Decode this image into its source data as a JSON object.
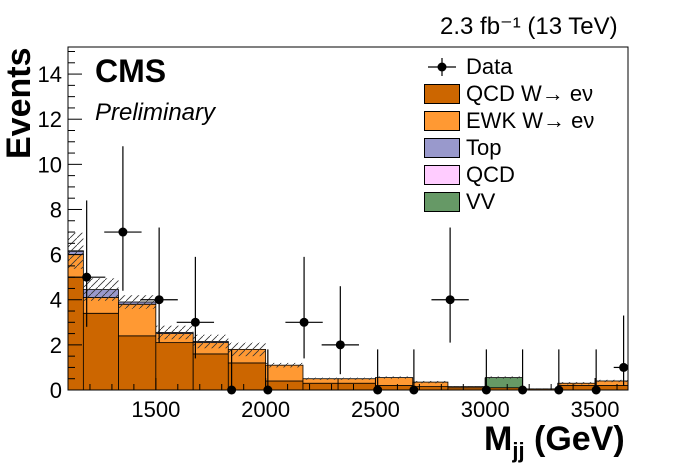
{
  "lumi_label": "2.3 fb⁻¹ (13 TeV)",
  "cms_label": "CMS",
  "prelim_label": "Preliminary",
  "chart_data": {
    "type": "bar",
    "stacked": true,
    "xlabel": "Mjj (GeV)",
    "ylabel": "Events",
    "xlim": [
      1100,
      3650
    ],
    "ylim": [
      0,
      15.2
    ],
    "xticks": [
      1500,
      2000,
      2500,
      3000,
      3500
    ],
    "yticks": [
      0,
      2,
      4,
      6,
      8,
      10,
      12,
      14
    ],
    "bin_edges": [
      1100,
      1170,
      1330,
      1500,
      1670,
      1830,
      2000,
      2170,
      2330,
      2500,
      2670,
      2830,
      3000,
      3170,
      3330,
      3500,
      3650
    ],
    "legend_placement": "top-right",
    "series": [
      {
        "name": "QCD W→ eν",
        "color": "#cc6600",
        "values": [
          5.0,
          3.4,
          2.4,
          2.1,
          1.6,
          1.2,
          0.4,
          0.3,
          0.3,
          0.2,
          0.15,
          0.1,
          0.1,
          0.05,
          0.2,
          0.2
        ]
      },
      {
        "name": "EWK W→ eν",
        "color": "#ff9933",
        "values": [
          1.0,
          0.7,
          1.4,
          0.4,
          0.5,
          0.6,
          0.7,
          0.2,
          0.2,
          0.35,
          0.2,
          0.05,
          0.0,
          0.0,
          0.1,
          0.2
        ]
      },
      {
        "name": "Top",
        "color": "#9999cc",
        "values": [
          0.15,
          0.35,
          0.1,
          0.05,
          0.05,
          0.0,
          0.0,
          0.0,
          0.0,
          0.0,
          0.0,
          0.0,
          0.0,
          0.0,
          0.0,
          0.0
        ]
      },
      {
        "name": "QCD",
        "color": "#ffccff",
        "values": [
          0.02,
          0.0,
          0.0,
          0.0,
          0.0,
          0.0,
          0.0,
          0.0,
          0.0,
          0.0,
          0.0,
          0.0,
          0.0,
          0.0,
          0.0,
          0.0
        ]
      },
      {
        "name": "VV",
        "color": "#669966",
        "values": [
          0.0,
          0.0,
          0.0,
          0.0,
          0.0,
          0.0,
          0.0,
          0.0,
          0.0,
          0.0,
          0.0,
          0.0,
          0.45,
          0.0,
          0.0,
          0.0
        ]
      }
    ],
    "mc_uncertainty": [
      0.8,
      0.5,
      0.3,
      0.3,
      0.3,
      0.3,
      0.1,
      0.05,
      0.05,
      0.05,
      0.05,
      0.02,
      0.05,
      0.02,
      0.05,
      0.05
    ],
    "data": {
      "name": "Data",
      "x": [
        1250,
        1420,
        1580,
        1750,
        1920,
        2080,
        2250,
        2420,
        2580,
        2750,
        2920,
        3080,
        3250,
        3420,
        3580,
        3650
      ],
      "points": [
        {
          "x": 1185,
          "y": 5,
          "yerr_up": 3.4,
          "yerr_down": 2.2,
          "xerr": 85
        },
        {
          "x": 1350,
          "y": 7,
          "yerr_up": 3.8,
          "yerr_down": 2.6,
          "xerr": 85
        },
        {
          "x": 1515,
          "y": 4,
          "yerr_up": 3.2,
          "yerr_down": 1.9,
          "xerr": 85
        },
        {
          "x": 1680,
          "y": 3,
          "yerr_up": 2.9,
          "yerr_down": 1.6,
          "xerr": 85
        },
        {
          "x": 1845,
          "y": 0,
          "yerr_up": 1.8,
          "yerr_down": 0,
          "xerr": 0
        },
        {
          "x": 2010,
          "y": 0,
          "yerr_up": 1.8,
          "yerr_down": 0,
          "xerr": 0
        },
        {
          "x": 2175,
          "y": 3,
          "yerr_up": 2.9,
          "yerr_down": 1.6,
          "xerr": 85
        },
        {
          "x": 2340,
          "y": 2,
          "yerr_up": 2.6,
          "yerr_down": 1.3,
          "xerr": 85
        },
        {
          "x": 2510,
          "y": 0,
          "yerr_up": 1.8,
          "yerr_down": 0,
          "xerr": 0
        },
        {
          "x": 2675,
          "y": 0,
          "yerr_up": 1.8,
          "yerr_down": 0,
          "xerr": 0
        },
        {
          "x": 2840,
          "y": 4,
          "yerr_up": 3.2,
          "yerr_down": 1.9,
          "xerr": 85
        },
        {
          "x": 3005,
          "y": 0,
          "yerr_up": 1.8,
          "yerr_down": 0,
          "xerr": 0
        },
        {
          "x": 3170,
          "y": 0,
          "yerr_up": 1.8,
          "yerr_down": 0,
          "xerr": 0
        },
        {
          "x": 3335,
          "y": 0,
          "yerr_up": 1.8,
          "yerr_down": 0,
          "xerr": 0
        },
        {
          "x": 3505,
          "y": 0,
          "yerr_up": 1.8,
          "yerr_down": 0,
          "xerr": 0
        },
        {
          "x": 3670,
          "y": 1,
          "yerr_up": 2.3,
          "yerr_down": 0.8,
          "xerr": 85
        }
      ]
    }
  }
}
